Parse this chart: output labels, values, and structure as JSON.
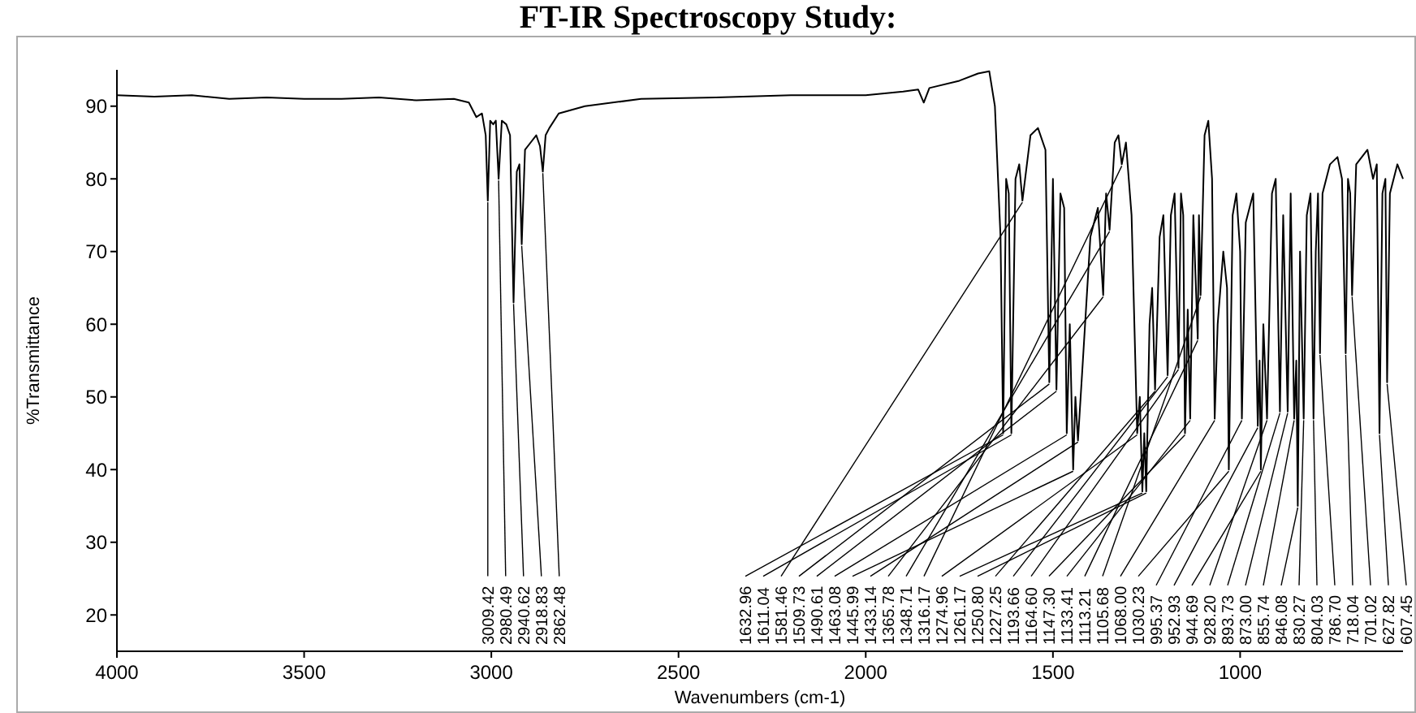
{
  "chart_data": {
    "type": "line",
    "title": "FT-IR Spectroscopy Study:",
    "xlabel": "Wavenumbers (cm-1)",
    "ylabel": "%Transmittance",
    "xlim": [
      4000,
      565
    ],
    "ylim": [
      15,
      95
    ],
    "xticks": [
      4000,
      3500,
      3000,
      2500,
      2000,
      1500,
      1000
    ],
    "yticks": [
      20,
      30,
      40,
      50,
      60,
      70,
      80,
      90
    ],
    "x": [
      4000,
      3900,
      3800,
      3700,
      3600,
      3500,
      3400,
      3300,
      3200,
      3100,
      3060,
      3040,
      3025,
      3015,
      3009.42,
      3003,
      2995,
      2988,
      2980.49,
      2972,
      2960,
      2950,
      2940.62,
      2932,
      2925,
      2918.83,
      2910,
      2895,
      2880,
      2870,
      2862.48,
      2855,
      2845,
      2820,
      2750,
      2600,
      2400,
      2200,
      2000,
      1900,
      1860,
      1845,
      1830,
      1750,
      1700,
      1670,
      1655,
      1640,
      1632.96,
      1625,
      1618,
      1611.04,
      1600,
      1590,
      1581.46,
      1560,
      1540,
      1520,
      1509.73,
      1500,
      1490.61,
      1480,
      1470,
      1463.08,
      1455,
      1445.99,
      1440,
      1433.14,
      1420,
      1400,
      1380,
      1365.78,
      1358,
      1348.71,
      1335,
      1325,
      1316.17,
      1305,
      1290,
      1274.96,
      1268,
      1261.17,
      1256,
      1250.8,
      1242,
      1235,
      1227.25,
      1215,
      1205,
      1193.66,
      1185,
      1175,
      1164.6,
      1158,
      1152,
      1147.3,
      1140,
      1133.41,
      1125,
      1113.21,
      1110,
      1105.68,
      1095,
      1085,
      1075,
      1068.0,
      1060,
      1045,
      1035,
      1030.23,
      1020,
      1010,
      1000,
      995.37,
      985,
      975,
      965,
      952.93,
      948,
      944.69,
      938,
      928.2,
      915,
      905,
      893.73,
      885,
      873.0,
      865,
      855.74,
      850,
      846.08,
      840,
      830.27,
      822,
      812,
      804.03,
      798,
      792,
      786.7,
      780,
      760,
      740,
      728,
      718.04,
      712,
      706,
      701.02,
      690,
      660,
      645,
      635,
      627.82,
      620,
      612,
      607.45,
      600,
      580,
      565
    ],
    "series": [
      {
        "color": "#000000",
        "values": [
          91.5,
          91.3,
          91.5,
          91.0,
          91.2,
          91.0,
          91.0,
          91.2,
          90.8,
          91.0,
          90.5,
          88.5,
          89,
          86,
          77,
          88,
          87.5,
          88,
          80,
          88,
          87.5,
          86,
          63,
          81,
          82,
          71,
          84,
          85,
          86,
          84.5,
          81,
          86,
          87,
          89,
          90,
          91,
          91.2,
          91.5,
          91.5,
          92,
          92.3,
          90.5,
          92.5,
          93.5,
          94.5,
          94.8,
          90,
          72,
          45,
          80,
          78,
          45,
          80,
          82,
          77,
          86,
          87,
          84,
          52,
          80,
          51,
          78,
          76,
          45,
          60,
          40,
          50,
          44,
          55,
          72,
          76,
          64,
          78,
          73,
          85,
          86,
          82,
          85,
          75,
          45,
          50,
          37,
          45,
          37,
          60,
          65,
          51,
          72,
          75,
          53,
          75,
          78,
          54,
          78,
          75,
          45,
          62,
          47,
          75,
          58,
          75,
          64,
          86,
          88,
          80,
          47,
          60,
          70,
          65,
          40,
          75,
          78,
          70,
          47,
          74,
          76,
          78,
          46,
          55,
          40,
          60,
          47,
          78,
          80,
          48,
          75,
          48,
          78,
          47,
          55,
          35,
          70,
          47,
          75,
          78,
          47,
          70,
          78,
          56,
          78,
          82,
          83,
          80,
          56,
          80,
          78,
          64,
          82,
          84,
          80,
          82,
          45,
          78,
          80,
          52,
          78,
          82,
          80
        ]
      }
    ],
    "annotations": [
      {
        "text": "3009.42",
        "x": 3009.42,
        "y": 77
      },
      {
        "text": "2980.49",
        "x": 2980.49,
        "y": 80
      },
      {
        "text": "2940.62",
        "x": 2940.62,
        "y": 63
      },
      {
        "text": "2918.83",
        "x": 2918.83,
        "y": 71
      },
      {
        "text": "2862.48",
        "x": 2862.48,
        "y": 81
      },
      {
        "text": "1632.96",
        "x": 1632.96,
        "y": 45
      },
      {
        "text": "1611.04",
        "x": 1611.04,
        "y": 45
      },
      {
        "text": "1581.46",
        "x": 1581.46,
        "y": 77
      },
      {
        "text": "1509.73",
        "x": 1509.73,
        "y": 52
      },
      {
        "text": "1490.61",
        "x": 1490.61,
        "y": 51
      },
      {
        "text": "1463.08",
        "x": 1463.08,
        "y": 45
      },
      {
        "text": "1445.99",
        "x": 1445.99,
        "y": 40
      },
      {
        "text": "1433.14",
        "x": 1433.14,
        "y": 44
      },
      {
        "text": "1365.78",
        "x": 1365.78,
        "y": 64
      },
      {
        "text": "1348.71",
        "x": 1348.71,
        "y": 73
      },
      {
        "text": "1316.17",
        "x": 1316.17,
        "y": 82
      },
      {
        "text": "1274.96",
        "x": 1274.96,
        "y": 45
      },
      {
        "text": "1261.17",
        "x": 1261.17,
        "y": 37
      },
      {
        "text": "1250.80",
        "x": 1250.8,
        "y": 37
      },
      {
        "text": "1227.25",
        "x": 1227.25,
        "y": 51
      },
      {
        "text": "1193.66",
        "x": 1193.66,
        "y": 53
      },
      {
        "text": "1164.60",
        "x": 1164.6,
        "y": 54
      },
      {
        "text": "1147.30",
        "x": 1147.3,
        "y": 45
      },
      {
        "text": "1133.41",
        "x": 1133.41,
        "y": 47
      },
      {
        "text": "1113.21",
        "x": 1113.21,
        "y": 58
      },
      {
        "text": "1105.68",
        "x": 1105.68,
        "y": 64
      },
      {
        "text": "1068.00",
        "x": 1068.0,
        "y": 47
      },
      {
        "text": "1030.23",
        "x": 1030.23,
        "y": 40
      },
      {
        "text": "995.37",
        "x": 995.37,
        "y": 47
      },
      {
        "text": "952.93",
        "x": 952.93,
        "y": 46
      },
      {
        "text": "944.69",
        "x": 944.69,
        "y": 40
      },
      {
        "text": "928.20",
        "x": 928.2,
        "y": 47
      },
      {
        "text": "893.73",
        "x": 893.73,
        "y": 48
      },
      {
        "text": "873.00",
        "x": 873.0,
        "y": 48
      },
      {
        "text": "855.74",
        "x": 855.74,
        "y": 47
      },
      {
        "text": "846.08",
        "x": 846.08,
        "y": 35
      },
      {
        "text": "830.27",
        "x": 830.27,
        "y": 47
      },
      {
        "text": "804.03",
        "x": 804.03,
        "y": 47
      },
      {
        "text": "786.70",
        "x": 786.7,
        "y": 56
      },
      {
        "text": "718.04",
        "x": 718.04,
        "y": 56
      },
      {
        "text": "701.02",
        "x": 701.02,
        "y": 64
      },
      {
        "text": "627.82",
        "x": 627.82,
        "y": 45
      },
      {
        "text": "607.45",
        "x": 607.45,
        "y": 52
      }
    ]
  }
}
